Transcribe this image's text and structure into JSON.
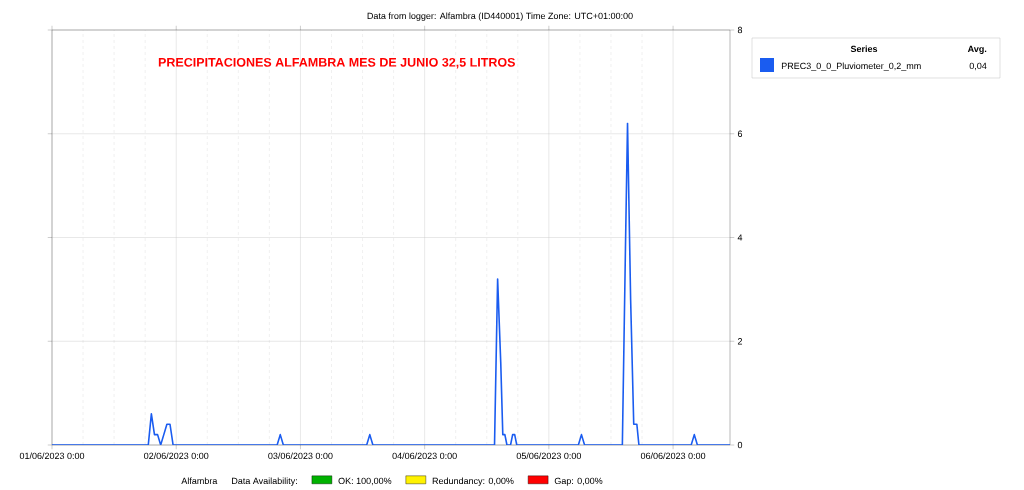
{
  "chart_data": {
    "type": "line",
    "title": "PRECIPITACIONES ALFAMBRA MES DE JUNIO 32,5 LITROS",
    "subtitle": "Data from logger: Alfambra (ID440001) Time Zone: UTC+01:00:00",
    "legend_title": "Series",
    "annotations": [
      "Alfambra",
      "Data Availability:",
      "OK: 100,00%",
      "Redundancy: 0,00%",
      "Gap: 0,00%",
      "Avg.",
      "0,04"
    ],
    "x": [
      "2023-06-01T00:00",
      "2023-06-01T18:36",
      "2023-06-01T19:12",
      "2023-06-01T19:48",
      "2023-06-01T20:24",
      "2023-06-01T21:00",
      "2023-06-01T21:36",
      "2023-06-01T22:12",
      "2023-06-01T22:48",
      "2023-06-01T23:24",
      "2023-06-02T19:30",
      "2023-06-02T20:06",
      "2023-06-02T20:42",
      "2023-06-03T12:48",
      "2023-06-03T13:24",
      "2023-06-03T14:00",
      "2023-06-04T13:30",
      "2023-06-04T14:06",
      "2023-06-04T14:42",
      "2023-06-04T15:06",
      "2023-06-04T15:30",
      "2023-06-04T15:54",
      "2023-06-04T16:36",
      "2023-06-04T17:00",
      "2023-06-04T17:24",
      "2023-06-04T17:48",
      "2023-06-05T05:42",
      "2023-06-05T06:18",
      "2023-06-05T06:54",
      "2023-06-05T14:12",
      "2023-06-05T14:48",
      "2023-06-05T15:12",
      "2023-06-05T15:48",
      "2023-06-05T16:24",
      "2023-06-05T17:00",
      "2023-06-05T17:24",
      "2023-06-06T03:30",
      "2023-06-06T04:06",
      "2023-06-06T04:42",
      "2023-06-06T11:00"
    ],
    "series": [
      {
        "name": "PREC3_0_0_Pluviometer_0,2_mm",
        "color": "#1a5cf0",
        "values": [
          0,
          0,
          0.6,
          0.2,
          0.2,
          0,
          0.2,
          0.4,
          0.4,
          0,
          0,
          0.2,
          0,
          0,
          0.2,
          0,
          0,
          3.2,
          1.6,
          0.2,
          0.2,
          0,
          0,
          0.2,
          0.2,
          0,
          0,
          0.2,
          0,
          0,
          3.8,
          6.2,
          2.8,
          0.4,
          0.4,
          0,
          0,
          0.2,
          0,
          0
        ]
      }
    ],
    "xlim": [
      "2023-06-01T00:00",
      "2023-06-06T11:00"
    ],
    "xticks": [
      {
        "value": "2023-06-01T00:00",
        "label": "01/06/2023 0:00"
      },
      {
        "value": "2023-06-02T00:00",
        "label": "02/06/2023 0:00"
      },
      {
        "value": "2023-06-03T00:00",
        "label": "03/06/2023 0:00"
      },
      {
        "value": "2023-06-04T00:00",
        "label": "04/06/2023 0:00"
      },
      {
        "value": "2023-06-05T00:00",
        "label": "05/06/2023 0:00"
      },
      {
        "value": "2023-06-06T00:00",
        "label": "06/06/2023 0:00"
      }
    ],
    "ylim": [
      0,
      8
    ],
    "yticks": [
      0,
      2,
      4,
      6,
      8
    ],
    "grid": true,
    "legend": "top right",
    "marker": "none",
    "line_style": "solid"
  }
}
